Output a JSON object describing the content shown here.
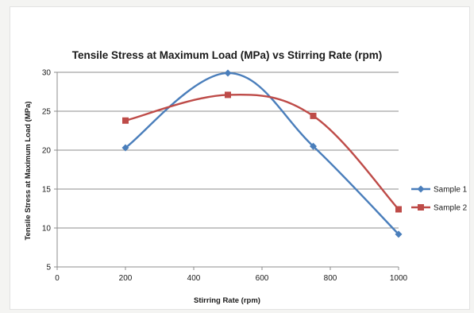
{
  "chart_data": {
    "type": "line",
    "title": "Tensile Stress at Maximum Load (MPa) vs Stirring Rate (rpm)",
    "xlabel": "Stirring Rate (rpm)",
    "ylabel": "Tensile Stress at Maximum Load (MPa)",
    "xlim": [
      0,
      1000
    ],
    "ylim": [
      5,
      30
    ],
    "x_ticks": [
      0,
      200,
      400,
      600,
      800,
      1000
    ],
    "y_ticks": [
      5,
      10,
      15,
      20,
      25,
      30
    ],
    "grid": "horizontal",
    "smooth": true,
    "legend_position": "right",
    "series": [
      {
        "name": "Sample 1",
        "color": "#4a7ebb",
        "marker": "diamond",
        "x": [
          200,
          500,
          750,
          1000
        ],
        "y": [
          20.3,
          29.9,
          20.5,
          9.2
        ]
      },
      {
        "name": "Sample 2",
        "color": "#be4b48",
        "marker": "square",
        "x": [
          200,
          500,
          750,
          1000
        ],
        "y": [
          23.8,
          27.1,
          24.4,
          12.4
        ]
      }
    ]
  }
}
